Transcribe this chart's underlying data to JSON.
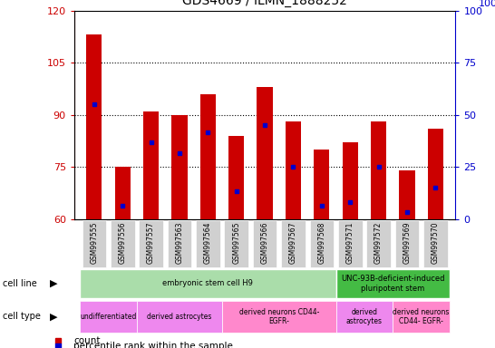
{
  "title": "GDS4669 / ILMN_1888252",
  "samples": [
    "GSM997555",
    "GSM997556",
    "GSM997557",
    "GSM997563",
    "GSM997564",
    "GSM997565",
    "GSM997566",
    "GSM997567",
    "GSM997568",
    "GSM997571",
    "GSM997572",
    "GSM997569",
    "GSM997570"
  ],
  "bar_heights": [
    113,
    75,
    91,
    90,
    96,
    84,
    98,
    88,
    80,
    82,
    88,
    74,
    86
  ],
  "blue_dots": [
    93,
    64,
    82,
    79,
    85,
    68,
    87,
    75,
    64,
    65,
    75,
    62,
    69
  ],
  "ymin": 60,
  "ymax": 120,
  "yticks_left": [
    60,
    75,
    90,
    105,
    120
  ],
  "yticks_right": [
    0,
    25,
    50,
    75,
    100
  ],
  "ylabel_left_color": "#cc0000",
  "ylabel_right_color": "#0000cc",
  "bar_color": "#cc0000",
  "dot_color": "#0000cc",
  "xtick_bg": "#d0d0d0",
  "cell_line_groups": [
    {
      "label": "embryonic stem cell H9",
      "start": 0,
      "end": 8,
      "color": "#aaddaa"
    },
    {
      "label": "UNC-93B-deficient-induced\npluripotent stem",
      "start": 9,
      "end": 12,
      "color": "#44bb44"
    }
  ],
  "cell_type_groups": [
    {
      "label": "undifferentiated",
      "start": 0,
      "end": 1,
      "color": "#ee88ee"
    },
    {
      "label": "derived astrocytes",
      "start": 2,
      "end": 4,
      "color": "#ee88ee"
    },
    {
      "label": "derived neurons CD44-\nEGFR-",
      "start": 5,
      "end": 8,
      "color": "#ff88cc"
    },
    {
      "label": "derived\nastrocytes",
      "start": 9,
      "end": 10,
      "color": "#ee88ee"
    },
    {
      "label": "derived neurons\nCD44- EGFR-",
      "start": 11,
      "end": 12,
      "color": "#ff88cc"
    }
  ]
}
